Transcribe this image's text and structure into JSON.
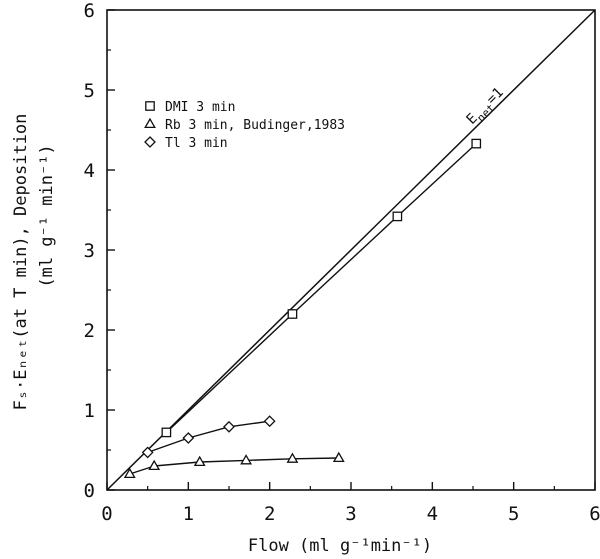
{
  "chart_data": {
    "type": "line",
    "title": "",
    "xlabel": "Flow (ml g⁻¹min⁻¹)",
    "ylabel_line1": "Fₛ·Eₙₑₜ(at T min), Deposition",
    "ylabel_line2": "(ml g⁻¹ min⁻¹)",
    "xlim": [
      0,
      6
    ],
    "ylim": [
      0,
      6
    ],
    "xticks": [
      0,
      1,
      2,
      3,
      4,
      5,
      6
    ],
    "yticks": [
      0,
      1,
      2,
      3,
      4,
      5,
      6
    ],
    "grid": false,
    "legend_position": "upper-left",
    "reference_line": {
      "label": "E",
      "label_sub": "net",
      "label_suffix": "=1",
      "x": [
        0,
        6
      ],
      "y": [
        0,
        6
      ]
    },
    "series": [
      {
        "name": "DMI 3 min",
        "marker": "square",
        "x": [
          0.73,
          2.28,
          3.57,
          4.54
        ],
        "y": [
          0.72,
          2.2,
          3.42,
          4.33
        ]
      },
      {
        "name": "Rb 3 min, Budinger,1983",
        "marker": "triangle",
        "x": [
          0.28,
          0.58,
          1.14,
          1.71,
          2.28,
          2.85
        ],
        "y": [
          0.2,
          0.3,
          0.35,
          0.37,
          0.39,
          0.4
        ]
      },
      {
        "name": "Tl 3 min",
        "marker": "diamond",
        "x": [
          0.5,
          1.0,
          1.5,
          2.0
        ],
        "y": [
          0.47,
          0.65,
          0.79,
          0.86
        ]
      }
    ]
  }
}
